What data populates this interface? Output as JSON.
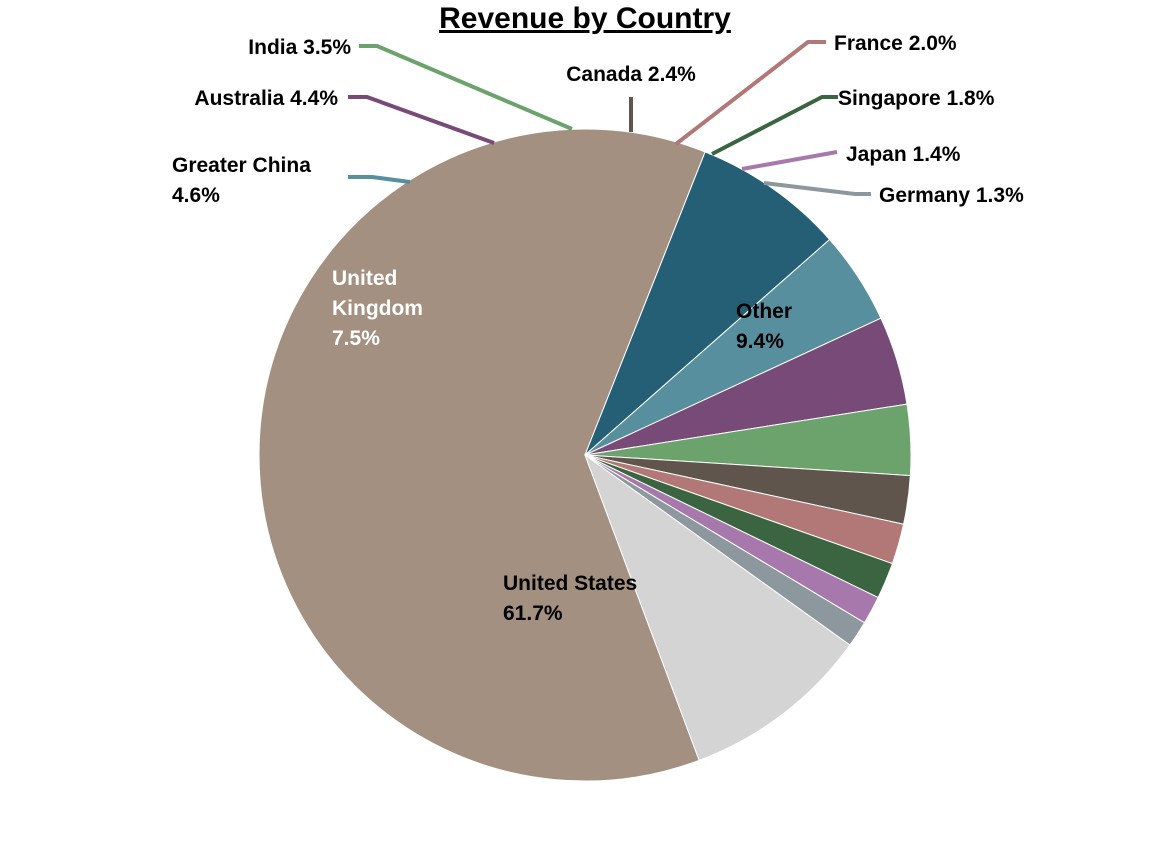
{
  "chart_data": {
    "type": "pie",
    "title": "Revenue by Country",
    "slices": [
      {
        "name": "United States",
        "value": 61.7,
        "display": "61.7%",
        "color": "#a39081"
      },
      {
        "name": "United Kingdom",
        "value": 7.5,
        "display": "7.5%",
        "color": "#245f75"
      },
      {
        "name": "Greater China",
        "value": 4.6,
        "display": "4.6%",
        "color": "#578f9f"
      },
      {
        "name": "Australia",
        "value": 4.4,
        "display": "4.4%",
        "color": "#774a77"
      },
      {
        "name": "India",
        "value": 3.5,
        "display": "3.5%",
        "color": "#6ca36c"
      },
      {
        "name": "Canada",
        "value": 2.4,
        "display": "2.4%",
        "color": "#5f554d"
      },
      {
        "name": "France",
        "value": 2.0,
        "display": "2.0%",
        "color": "#b27777"
      },
      {
        "name": "Singapore",
        "value": 1.8,
        "display": "1.8%",
        "color": "#3a6540"
      },
      {
        "name": "Japan",
        "value": 1.4,
        "display": "1.4%",
        "color": "#a778ab"
      },
      {
        "name": "Germany",
        "value": 1.3,
        "display": "1.3%",
        "color": "#8c989d"
      },
      {
        "name": "Other",
        "value": 9.4,
        "display": "9.4%",
        "color": "#d4d4d4"
      }
    ]
  }
}
